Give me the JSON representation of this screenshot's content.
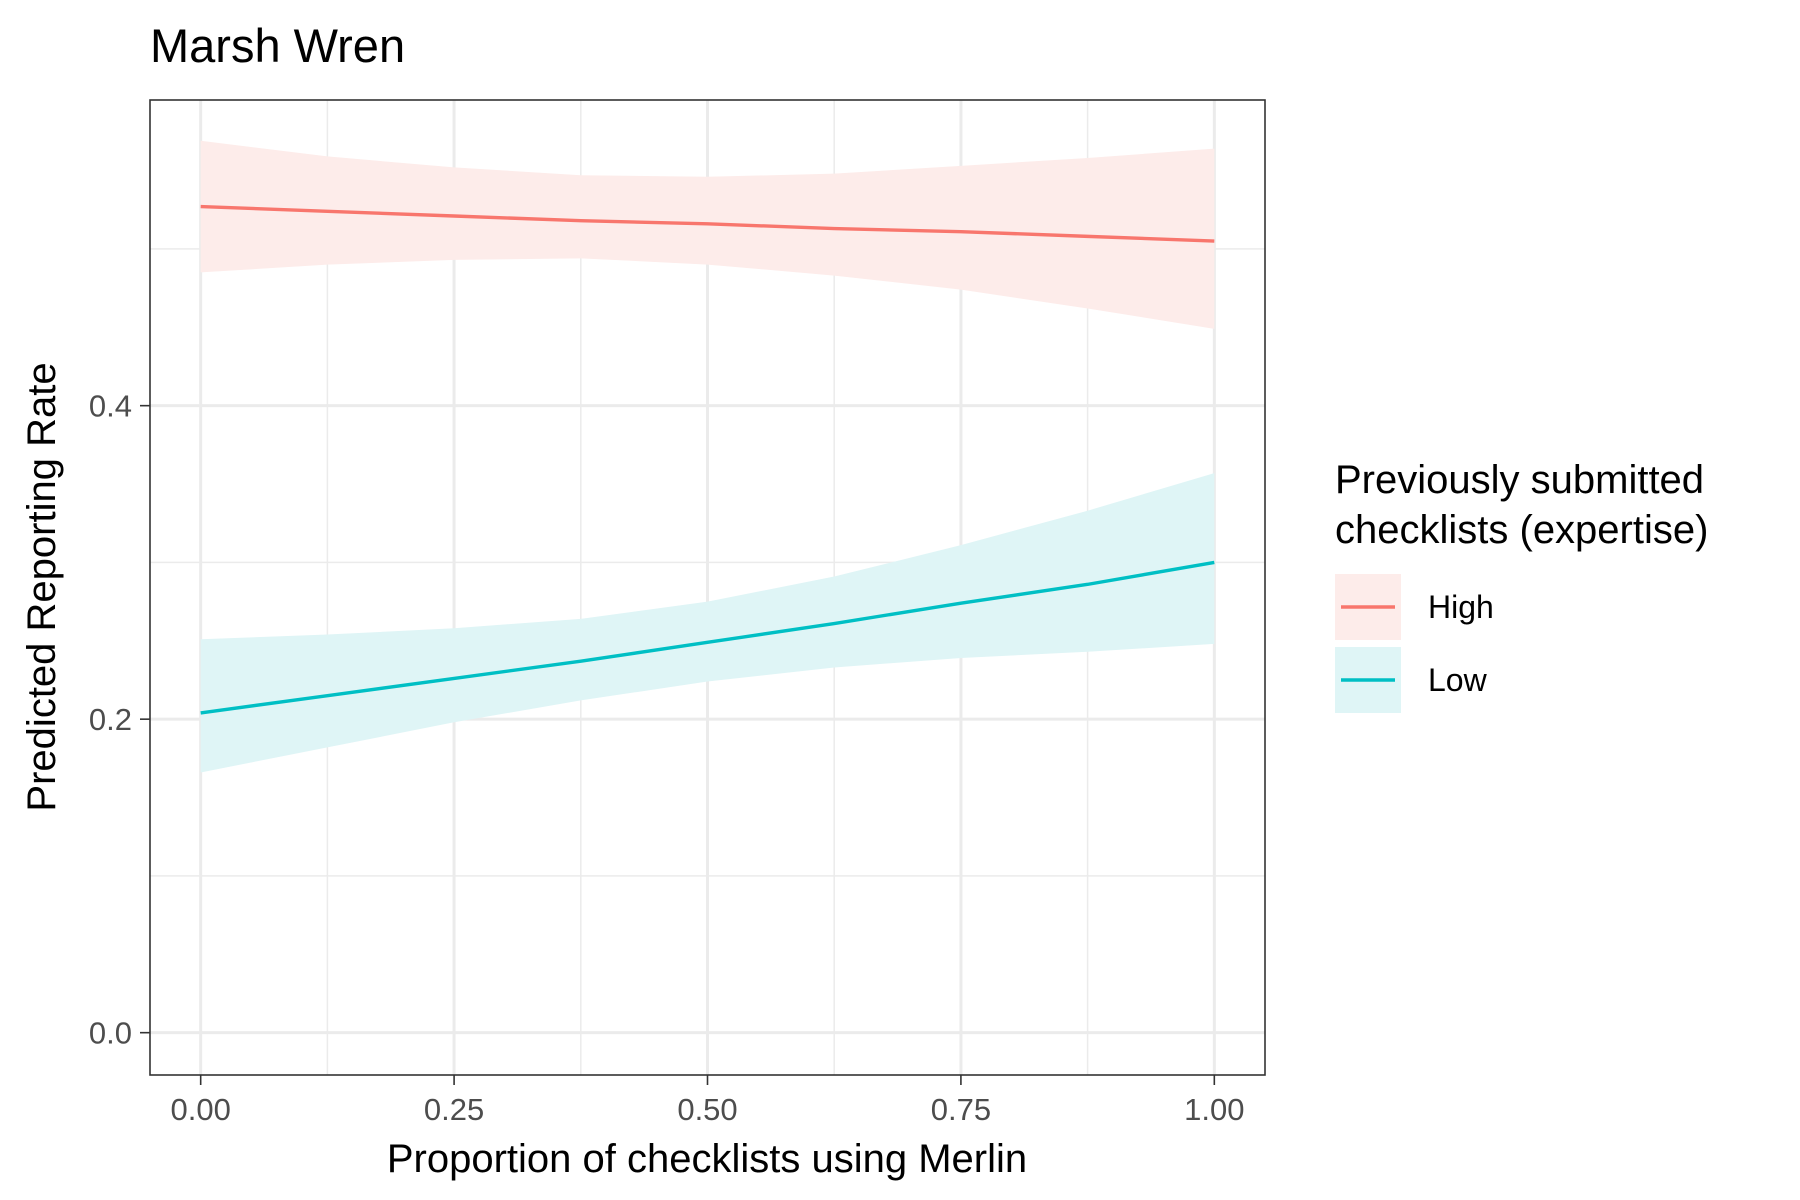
{
  "chart_data": {
    "type": "line",
    "title": "Marsh Wren",
    "xlabel": "Proportion of checklists using Merlin",
    "ylabel": "Predicted Reporting Rate",
    "xlim": [
      -0.05,
      1.05
    ],
    "ylim": [
      -0.027,
      0.595
    ],
    "x_ticks": [
      0,
      0.25,
      0.5,
      0.75,
      1
    ],
    "x_tick_labels": [
      "0.00",
      "0.25",
      "0.50",
      "0.75",
      "1.00"
    ],
    "y_ticks": [
      0,
      0.2,
      0.4
    ],
    "y_tick_labels": [
      "0.0",
      "0.2",
      "0.4"
    ],
    "x_minor_ticks": [
      0.125,
      0.375,
      0.625,
      0.875
    ],
    "y_minor_ticks": [
      0.1,
      0.3,
      0.5
    ],
    "grid": true,
    "legend_position": "right",
    "legend_title_lines": [
      "Previously submitted",
      "checklists (expertise)"
    ],
    "x": [
      0,
      0.125,
      0.25,
      0.375,
      0.5,
      0.625,
      0.75,
      0.875,
      1
    ],
    "series": [
      {
        "name": "High",
        "color": "#F8766D",
        "band_color": "#FDECEA",
        "values": [
          0.527,
          0.524,
          0.521,
          0.518,
          0.516,
          0.513,
          0.511,
          0.508,
          0.505
        ],
        "lower": [
          0.485,
          0.49,
          0.493,
          0.494,
          0.49,
          0.483,
          0.474,
          0.462,
          0.449
        ],
        "upper": [
          0.569,
          0.559,
          0.552,
          0.547,
          0.546,
          0.548,
          0.553,
          0.558,
          0.564
        ]
      },
      {
        "name": "Low",
        "color": "#00BFC4",
        "band_color": "#DFF5F6",
        "values": [
          0.204,
          0.215,
          0.226,
          0.237,
          0.249,
          0.261,
          0.274,
          0.286,
          0.3
        ],
        "lower": [
          0.166,
          0.182,
          0.198,
          0.212,
          0.224,
          0.233,
          0.239,
          0.243,
          0.248
        ],
        "upper": [
          0.251,
          0.254,
          0.258,
          0.264,
          0.275,
          0.291,
          0.311,
          0.333,
          0.357
        ]
      }
    ]
  }
}
